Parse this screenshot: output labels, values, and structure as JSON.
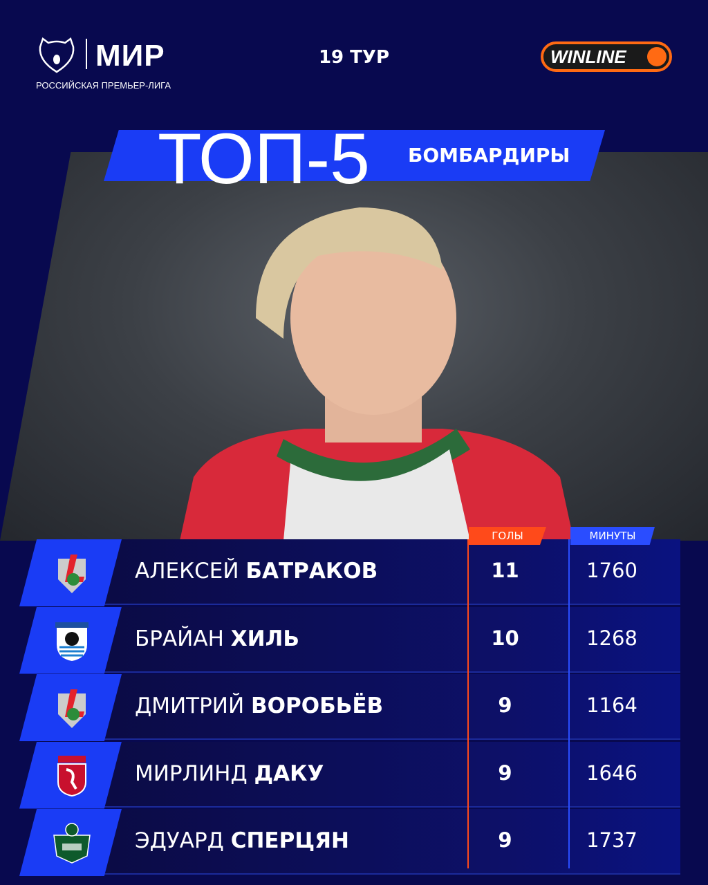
{
  "header": {
    "brand": "МИР",
    "league": "РОССИЙСКАЯ ПРЕМЬЕР-ЛИГА",
    "round": "19 ТУР",
    "sponsor": "WINLINE"
  },
  "title": {
    "main": "ТОП-5",
    "sub": "БОМБАРДИРЫ"
  },
  "table": {
    "headers": {
      "goals": "ГОЛЫ",
      "minutes": "МИНУТЫ"
    },
    "rows": [
      {
        "first": "АЛЕКСЕЙ",
        "last": "БАТРАКОВ",
        "club": "lokomotiv-logo",
        "goals": "11",
        "minutes": "1760"
      },
      {
        "first": "БРАЙАН",
        "last": "ХИЛЬ",
        "club": "baltika-logo",
        "goals": "10",
        "minutes": "1268"
      },
      {
        "first": "ДМИТРИЙ",
        "last": "ВОРОБЬЁВ",
        "club": "lokomotiv-logo",
        "goals": "9",
        "minutes": "1164"
      },
      {
        "first": "МИРЛИНД",
        "last": "ДАКУ",
        "club": "rubin-logo",
        "goals": "9",
        "minutes": "1646"
      },
      {
        "first": "ЭДУАРД",
        "last": "СПЕРЦЯН",
        "club": "krasnodar-logo",
        "goals": "9",
        "minutes": "1737"
      }
    ]
  },
  "colors": {
    "background": "#08094f",
    "accent_blue": "#1a3cf5",
    "accent_orange": "#ff4a1a",
    "sponsor_orange": "#ff6a13"
  }
}
